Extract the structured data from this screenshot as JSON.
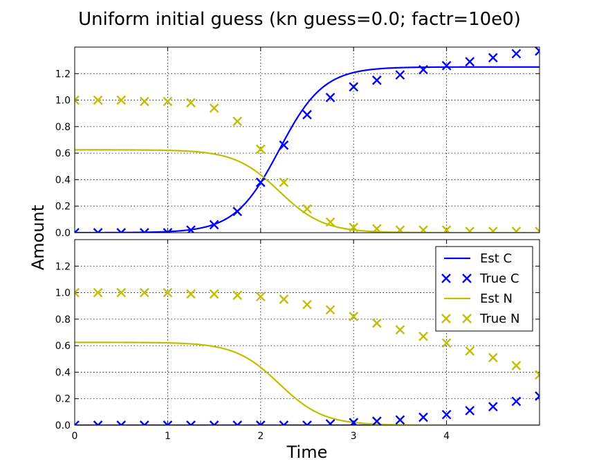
{
  "chart_data": {
    "type": "line",
    "title": "Uniform initial guess (kn guess=0.0; factr=10e0)",
    "xlabel": "Time",
    "ylabel": "Amount",
    "xlim": [
      0,
      5
    ],
    "ylim": [
      0,
      1.4
    ],
    "xticks": [
      0,
      1,
      2,
      3,
      4
    ],
    "yticks": [
      0.0,
      0.2,
      0.4,
      0.6,
      0.8,
      1.0,
      1.2
    ],
    "grid": true,
    "legend_position": "top-right",
    "colors": {
      "C": "#0000ff",
      "N": "#bfbf00"
    },
    "legend": [
      "Est C",
      "True C",
      "Est N",
      "True N"
    ],
    "panels": [
      {
        "est_C": {
          "name": "Est C",
          "max": 1.25,
          "midpoint": 2.2,
          "rate": 4.2
        },
        "est_N": {
          "name": "Est N",
          "max": 0.625,
          "midpoint": 2.2,
          "rate": 4.2
        },
        "true_C": {
          "name": "True C",
          "x": [
            0,
            0.25,
            0.5,
            0.75,
            1.0,
            1.25,
            1.5,
            1.75,
            2.0,
            2.25,
            2.5,
            2.75,
            3.0,
            3.25,
            3.5,
            3.75,
            4.0,
            4.25,
            4.5,
            4.75,
            5.0
          ],
          "y": [
            0.0,
            0.0,
            0.0,
            0.0,
            0.0,
            0.02,
            0.06,
            0.16,
            0.38,
            0.66,
            0.89,
            1.02,
            1.1,
            1.15,
            1.19,
            1.23,
            1.26,
            1.29,
            1.32,
            1.35,
            1.37
          ]
        },
        "true_N": {
          "name": "True N",
          "x": [
            0,
            0.25,
            0.5,
            0.75,
            1.0,
            1.25,
            1.5,
            1.75,
            2.0,
            2.25,
            2.5,
            2.75,
            3.0,
            3.25,
            3.5,
            3.75,
            4.0,
            4.25,
            4.5,
            4.75,
            5.0
          ],
          "y": [
            1.0,
            1.0,
            1.0,
            0.99,
            0.99,
            0.98,
            0.94,
            0.84,
            0.63,
            0.38,
            0.18,
            0.08,
            0.04,
            0.03,
            0.02,
            0.02,
            0.02,
            0.01,
            0.01,
            0.01,
            0.01
          ]
        }
      },
      {
        "est_C": {
          "name": "Est C",
          "max": 0.0,
          "midpoint": 2.2,
          "rate": 4.2
        },
        "est_N": {
          "name": "Est N",
          "max": 0.625,
          "midpoint": 2.2,
          "rate": 4.2
        },
        "true_C": {
          "name": "True C",
          "x": [
            0,
            0.25,
            0.5,
            0.75,
            1.0,
            1.25,
            1.5,
            1.75,
            2.0,
            2.25,
            2.5,
            2.75,
            3.0,
            3.25,
            3.5,
            3.75,
            4.0,
            4.25,
            4.5,
            4.75,
            5.0
          ],
          "y": [
            0.0,
            0.0,
            0.0,
            0.0,
            0.0,
            0.0,
            0.0,
            0.0,
            0.0,
            0.0,
            0.0,
            0.01,
            0.02,
            0.03,
            0.04,
            0.06,
            0.08,
            0.11,
            0.14,
            0.18,
            0.22
          ]
        },
        "true_N": {
          "name": "True N",
          "x": [
            0,
            0.25,
            0.5,
            0.75,
            1.0,
            1.25,
            1.5,
            1.75,
            2.0,
            2.25,
            2.5,
            2.75,
            3.0,
            3.25,
            3.5,
            3.75,
            4.0,
            4.25,
            4.5,
            4.75,
            5.0
          ],
          "y": [
            1.0,
            1.0,
            1.0,
            1.0,
            1.0,
            0.99,
            0.99,
            0.98,
            0.97,
            0.95,
            0.91,
            0.87,
            0.82,
            0.77,
            0.72,
            0.67,
            0.62,
            0.56,
            0.51,
            0.45,
            0.38
          ]
        }
      }
    ]
  }
}
